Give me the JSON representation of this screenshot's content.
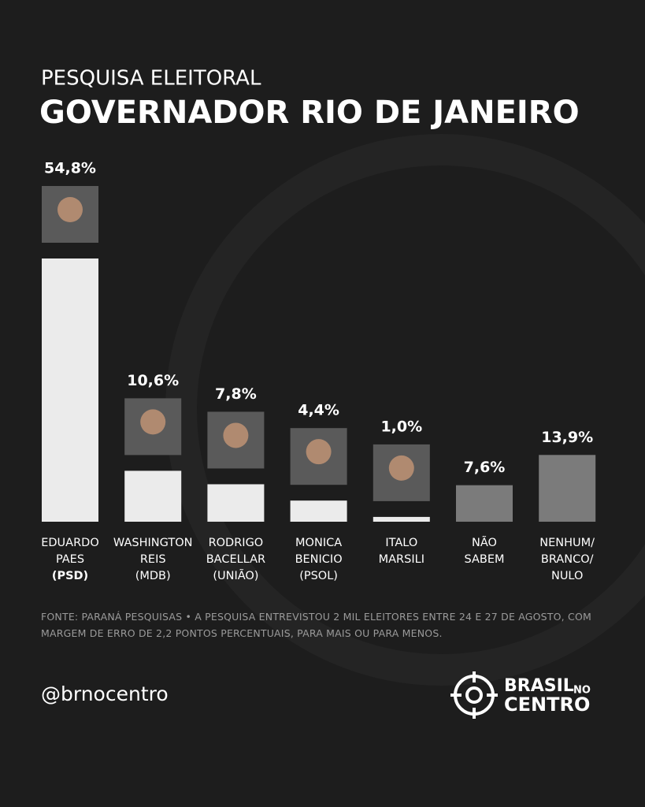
{
  "chart_data": {
    "type": "bar",
    "subtitle": "PESQUISA ELEITORAL",
    "title": "GOVERNADOR RIO DE JANEIRO",
    "categories": [
      [
        "EDUARDO",
        "PAES",
        "(PSD)"
      ],
      [
        "WASHINGTON",
        "REIS",
        "(MDB)"
      ],
      [
        "RODRIGO",
        "BACELLAR",
        "(UNIÃO)"
      ],
      [
        "MONICA",
        "BENICIO",
        "(PSOL)"
      ],
      [
        "ITALO",
        "MARSILI"
      ],
      [
        "NÃO",
        "SABEM"
      ],
      [
        "NENHUM/",
        "BRANCO/",
        "NULO"
      ]
    ],
    "values": [
      54.8,
      10.6,
      7.8,
      4.4,
      1.0,
      7.6,
      13.9
    ],
    "value_labels": [
      "54,8%",
      "10,6%",
      "7,8%",
      "4,4%",
      "1,0%",
      "7,6%",
      "13,9%"
    ],
    "colors": [
      "#ebebeb",
      "#ebebeb",
      "#ebebeb",
      "#ebebeb",
      "#ebebeb",
      "#7b7b7b",
      "#7b7b7b"
    ],
    "source": "FONTE: PARANÁ PESQUISAS • A PESQUISA ENTREVISTOU 2 MIL ELEITORES ENTRE 24 E 27 DE AGOSTO, COM MARGEM DE ERRO DE 2,2 PONTOS PERCENTUAIS, PARA MAIS OU PARA MENOS."
  },
  "footer": {
    "handle": "@brnocentro",
    "logo": {
      "line1": "BRASIL",
      "small": "NO",
      "line2": "CENTRO"
    }
  }
}
